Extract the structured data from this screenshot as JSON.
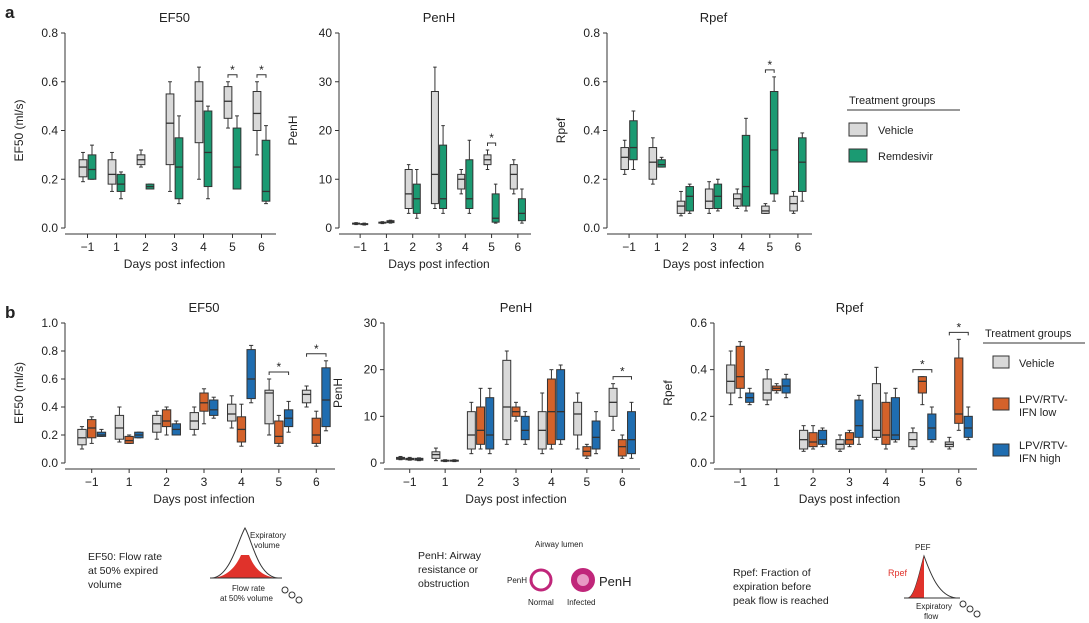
{
  "panel_labels": [
    "a",
    "b"
  ],
  "colors": {
    "vehicle": "#d9d9d9",
    "remdesivir": "#1b9a72",
    "lpv_low": "#d4622a",
    "lpv_high": "#1f6db0",
    "stroke": "#333333",
    "red": "#e0322b",
    "magenta": "#c0267a"
  },
  "legend_a": {
    "title": "Treatment groups",
    "items": [
      {
        "label": "Vehicle",
        "color": "#d9d9d9"
      },
      {
        "label": "Remdesivir",
        "color": "#1b9a72"
      }
    ]
  },
  "legend_b": {
    "title": "Treatment groups",
    "items": [
      {
        "label": "Vehicle",
        "color": "#d9d9d9"
      },
      {
        "label": "LPV/RTV-\nIFN low",
        "color": "#d4622a"
      },
      {
        "label": "LPV/RTV-\nIFN high",
        "color": "#1f6db0"
      }
    ]
  },
  "chart_data": [
    {
      "id": "a-ef50",
      "type": "box",
      "title": "EF50",
      "xlabel": "Days post infection",
      "ylabel": "EF50 (ml/s)",
      "categories": [
        "−1",
        "1",
        "2",
        "3",
        "4",
        "5",
        "6"
      ],
      "ylim": [
        0,
        0.8
      ],
      "yticks": [
        "0.0",
        "0.2",
        "0.4",
        "0.6",
        "0.8"
      ],
      "series": [
        {
          "name": "Vehicle",
          "boxes": [
            [
              0.19,
              0.21,
              0.25,
              0.28,
              0.31
            ],
            [
              0.15,
              0.18,
              0.22,
              0.28,
              0.31
            ],
            [
              0.25,
              0.26,
              0.28,
              0.3,
              0.32
            ],
            [
              0.15,
              0.26,
              0.43,
              0.55,
              0.6
            ],
            [
              0.2,
              0.35,
              0.52,
              0.6,
              0.66
            ],
            [
              0.41,
              0.45,
              0.52,
              0.58,
              0.6
            ],
            [
              0.3,
              0.4,
              0.47,
              0.56,
              0.6
            ]
          ]
        },
        {
          "name": "Remdesivir",
          "boxes": [
            [
              0.2,
              0.2,
              0.24,
              0.3,
              0.34
            ],
            [
              0.12,
              0.15,
              0.18,
              0.22,
              0.23
            ],
            [
              0.16,
              0.16,
              0.17,
              0.18,
              0.18
            ],
            [
              0.1,
              0.12,
              0.25,
              0.37,
              0.46
            ],
            [
              0.12,
              0.17,
              0.31,
              0.48,
              0.5
            ],
            [
              0.16,
              0.16,
              0.25,
              0.41,
              0.46
            ],
            [
              0.1,
              0.11,
              0.15,
              0.36,
              0.42
            ]
          ]
        }
      ],
      "annotations": [
        {
          "text": "*",
          "between": 5
        },
        {
          "text": "*",
          "between": 6
        }
      ]
    },
    {
      "id": "a-penh",
      "type": "box",
      "title": "PenH",
      "xlabel": "Days post infection",
      "ylabel": "PenH",
      "categories": [
        "−1",
        "1",
        "2",
        "3",
        "4",
        "5",
        "6"
      ],
      "ylim": [
        0,
        40
      ],
      "yticks": [
        "0",
        "10",
        "20",
        "30",
        "40"
      ],
      "series": [
        {
          "name": "Vehicle",
          "boxes": [
            [
              0.7,
              0.8,
              0.9,
              1.0,
              1.1
            ],
            [
              0.9,
              1.0,
              1.1,
              1.2,
              1.3
            ],
            [
              3,
              4,
              7,
              12,
              13
            ],
            [
              4,
              5,
              11,
              28,
              33
            ],
            [
              7,
              8,
              10,
              11,
              12
            ],
            [
              12,
              13,
              14,
              15,
              16
            ],
            [
              7,
              8,
              11,
              13,
              14
            ]
          ]
        },
        {
          "name": "Remdesivir",
          "boxes": [
            [
              0.6,
              0.7,
              0.8,
              0.9,
              1.0
            ],
            [
              1.0,
              1.1,
              1.3,
              1.5,
              1.6
            ],
            [
              2,
              3,
              6,
              9,
              12
            ],
            [
              3,
              4,
              6,
              17,
              21
            ],
            [
              3,
              4,
              6,
              14,
              18
            ],
            [
              1,
              1.2,
              2,
              7,
              9
            ],
            [
              1,
              1.5,
              3,
              6,
              8
            ]
          ]
        }
      ],
      "annotations": [
        {
          "text": "*",
          "between": 5
        }
      ]
    },
    {
      "id": "a-rpef",
      "type": "box",
      "title": "Rpef",
      "xlabel": "Days post infection",
      "ylabel": "Rpef",
      "categories": [
        "−1",
        "1",
        "2",
        "3",
        "4",
        "5",
        "6"
      ],
      "ylim": [
        0,
        0.8
      ],
      "yticks": [
        "0.0",
        "0.2",
        "0.4",
        "0.6",
        "0.8"
      ],
      "series": [
        {
          "name": "Vehicle",
          "boxes": [
            [
              0.22,
              0.24,
              0.29,
              0.33,
              0.36
            ],
            [
              0.18,
              0.2,
              0.27,
              0.33,
              0.37
            ],
            [
              0.05,
              0.06,
              0.09,
              0.11,
              0.15
            ],
            [
              0.06,
              0.08,
              0.11,
              0.16,
              0.19
            ],
            [
              0.08,
              0.09,
              0.12,
              0.14,
              0.16
            ],
            [
              0.06,
              0.06,
              0.07,
              0.09,
              0.1
            ],
            [
              0.06,
              0.07,
              0.1,
              0.13,
              0.15
            ]
          ]
        },
        {
          "name": "Remdesivir",
          "boxes": [
            [
              0.24,
              0.28,
              0.33,
              0.44,
              0.48
            ],
            [
              0.25,
              0.25,
              0.26,
              0.28,
              0.29
            ],
            [
              0.06,
              0.07,
              0.13,
              0.17,
              0.18
            ],
            [
              0.07,
              0.08,
              0.13,
              0.18,
              0.2
            ],
            [
              0.07,
              0.09,
              0.17,
              0.38,
              0.45
            ],
            [
              0.11,
              0.14,
              0.32,
              0.56,
              0.62
            ],
            [
              0.11,
              0.15,
              0.27,
              0.37,
              0.39
            ]
          ]
        }
      ],
      "annotations": [
        {
          "text": "*",
          "between": 5
        }
      ]
    },
    {
      "id": "b-ef50",
      "type": "box",
      "title": "EF50",
      "xlabel": "Days post infection",
      "ylabel": "EF50 (ml/s)",
      "categories": [
        "−1",
        "1",
        "2",
        "3",
        "4",
        "5",
        "6"
      ],
      "ylim": [
        0,
        1.0
      ],
      "yticks": [
        "0.0",
        "0.2",
        "0.4",
        "0.6",
        "0.8",
        "1.0"
      ],
      "series": [
        {
          "name": "Vehicle",
          "boxes": [
            [
              0.1,
              0.13,
              0.18,
              0.24,
              0.26
            ],
            [
              0.15,
              0.17,
              0.25,
              0.34,
              0.4
            ],
            [
              0.17,
              0.22,
              0.28,
              0.34,
              0.37
            ],
            [
              0.2,
              0.24,
              0.3,
              0.36,
              0.4
            ],
            [
              0.25,
              0.3,
              0.35,
              0.42,
              0.48
            ],
            [
              0.2,
              0.28,
              0.5,
              0.52,
              0.6
            ],
            [
              0.4,
              0.43,
              0.49,
              0.52,
              0.55
            ]
          ]
        },
        {
          "name": "LPV/RTV-IFN low",
          "boxes": [
            [
              0.14,
              0.18,
              0.25,
              0.31,
              0.33
            ],
            [
              0.14,
              0.14,
              0.16,
              0.19,
              0.2
            ],
            [
              0.2,
              0.26,
              0.3,
              0.38,
              0.4
            ],
            [
              0.28,
              0.37,
              0.43,
              0.5,
              0.53
            ],
            [
              0.12,
              0.15,
              0.24,
              0.33,
              0.42
            ],
            [
              0.12,
              0.14,
              0.19,
              0.3,
              0.34
            ],
            [
              0.12,
              0.14,
              0.2,
              0.32,
              0.37
            ]
          ]
        },
        {
          "name": "LPV/RTV-IFN high",
          "boxes": [
            [
              0.19,
              0.19,
              0.2,
              0.22,
              0.24
            ],
            [
              0.18,
              0.18,
              0.2,
              0.22,
              0.22
            ],
            [
              0.2,
              0.2,
              0.24,
              0.28,
              0.3
            ],
            [
              0.32,
              0.34,
              0.38,
              0.45,
              0.47
            ],
            [
              0.43,
              0.46,
              0.6,
              0.81,
              0.84
            ],
            [
              0.22,
              0.26,
              0.32,
              0.38,
              0.44
            ],
            [
              0.23,
              0.26,
              0.45,
              0.68,
              0.73
            ]
          ]
        }
      ],
      "annotations": [
        {
          "text": "*",
          "between": 5
        },
        {
          "text": "*",
          "between": 6
        }
      ]
    },
    {
      "id": "b-penh",
      "type": "box",
      "title": "PenH",
      "xlabel": "Days post infection",
      "ylabel": "PenH",
      "categories": [
        "−1",
        "1",
        "2",
        "3",
        "4",
        "5",
        "6"
      ],
      "ylim": [
        0,
        30
      ],
      "yticks": [
        "0",
        "10",
        "20",
        "30"
      ],
      "series": [
        {
          "name": "Vehicle",
          "boxes": [
            [
              0.7,
              0.8,
              1.0,
              1.2,
              1.4
            ],
            [
              0.5,
              1.0,
              1.8,
              2.4,
              3.2
            ],
            [
              2,
              3,
              6,
              11,
              13
            ],
            [
              4,
              5,
              12,
              22,
              24
            ],
            [
              2,
              3,
              7,
              11,
              15
            ],
            [
              3,
              6,
              10.5,
              13,
              15
            ],
            [
              7,
              10,
              13,
              16,
              17
            ]
          ]
        },
        {
          "name": "LPV/RTV-IFN low",
          "boxes": [
            [
              0.6,
              0.7,
              0.9,
              1.0,
              1.2
            ],
            [
              0.3,
              0.4,
              0.5,
              0.6,
              0.7
            ],
            [
              3,
              4,
              7,
              12,
              16
            ],
            [
              9,
              10,
              11,
              12,
              13
            ],
            [
              3,
              4,
              11,
              18,
              20
            ],
            [
              1,
              1.5,
              2.5,
              3.5,
              4
            ],
            [
              1,
              1.5,
              3.5,
              5,
              6
            ]
          ]
        },
        {
          "name": "LPV/RTV-IFN high",
          "boxes": [
            [
              0.5,
              0.6,
              0.8,
              1.0,
              1.1
            ],
            [
              0.3,
              0.4,
              0.5,
              0.6,
              0.7
            ],
            [
              2,
              3,
              6,
              14,
              16
            ],
            [
              4,
              5,
              7,
              10,
              11
            ],
            [
              4,
              5,
              11,
              20,
              21
            ],
            [
              2,
              3,
              5.5,
              9,
              11
            ],
            [
              1,
              2,
              5,
              11,
              13
            ]
          ]
        }
      ],
      "annotations": [
        {
          "text": "*",
          "between": 6
        }
      ]
    },
    {
      "id": "b-rpef",
      "type": "box",
      "title": "Rpef",
      "xlabel": "Days post infection",
      "ylabel": "Rpef",
      "categories": [
        "−1",
        "1",
        "2",
        "3",
        "4",
        "5",
        "6"
      ],
      "ylim": [
        0,
        0.6
      ],
      "yticks": [
        "0.0",
        "0.2",
        "0.4",
        "0.6"
      ],
      "series": [
        {
          "name": "Vehicle",
          "boxes": [
            [
              0.25,
              0.3,
              0.35,
              0.42,
              0.48
            ],
            [
              0.25,
              0.27,
              0.3,
              0.36,
              0.4
            ],
            [
              0.05,
              0.06,
              0.1,
              0.14,
              0.16
            ],
            [
              0.05,
              0.06,
              0.08,
              0.1,
              0.12
            ],
            [
              0.1,
              0.11,
              0.14,
              0.34,
              0.41
            ],
            [
              0.06,
              0.07,
              0.1,
              0.13,
              0.15
            ],
            [
              0.06,
              0.07,
              0.08,
              0.09,
              0.11
            ]
          ]
        },
        {
          "name": "LPV/RTV-IFN low",
          "boxes": [
            [
              0.28,
              0.32,
              0.37,
              0.5,
              0.52
            ],
            [
              0.3,
              0.31,
              0.32,
              0.33,
              0.34
            ],
            [
              0.06,
              0.07,
              0.09,
              0.13,
              0.16
            ],
            [
              0.07,
              0.08,
              0.1,
              0.13,
              0.14
            ],
            [
              0.06,
              0.08,
              0.12,
              0.26,
              0.3
            ],
            [
              0.25,
              0.3,
              0.35,
              0.37,
              0.37
            ],
            [
              0.14,
              0.17,
              0.21,
              0.45,
              0.53
            ]
          ]
        },
        {
          "name": "LPV/RTV-IFN high",
          "boxes": [
            [
              0.25,
              0.26,
              0.28,
              0.3,
              0.32
            ],
            [
              0.28,
              0.3,
              0.33,
              0.36,
              0.38
            ],
            [
              0.07,
              0.08,
              0.1,
              0.14,
              0.15
            ],
            [
              0.08,
              0.11,
              0.16,
              0.27,
              0.29
            ],
            [
              0.09,
              0.1,
              0.12,
              0.28,
              0.32
            ],
            [
              0.09,
              0.1,
              0.15,
              0.21,
              0.24
            ],
            [
              0.1,
              0.11,
              0.15,
              0.2,
              0.24
            ]
          ]
        }
      ],
      "annotations": [
        {
          "text": "*",
          "between": 5
        },
        {
          "text": "*",
          "between": 6
        }
      ]
    }
  ],
  "notes": {
    "ef50": {
      "text": [
        "EF50: Flow rate",
        "at 50% expired",
        "volume"
      ],
      "label_top": [
        "Expiratory",
        "volume"
      ],
      "label_bottom": [
        "Flow rate",
        "at 50% volume"
      ]
    },
    "penh": {
      "text": [
        "PenH: Airway",
        "resistance or",
        "obstruction"
      ],
      "lumen": "Airway lumen",
      "left_label": "PenH",
      "right_label": "PenH",
      "normal": "Normal",
      "infected": "Infected"
    },
    "rpef": {
      "text": [
        "Rpef: Fraction of",
        "expiration before",
        "peak flow is reached"
      ],
      "pef": "PEF",
      "rpef": "Rpef",
      "bottom": [
        "Expiratory",
        "flow"
      ]
    }
  }
}
